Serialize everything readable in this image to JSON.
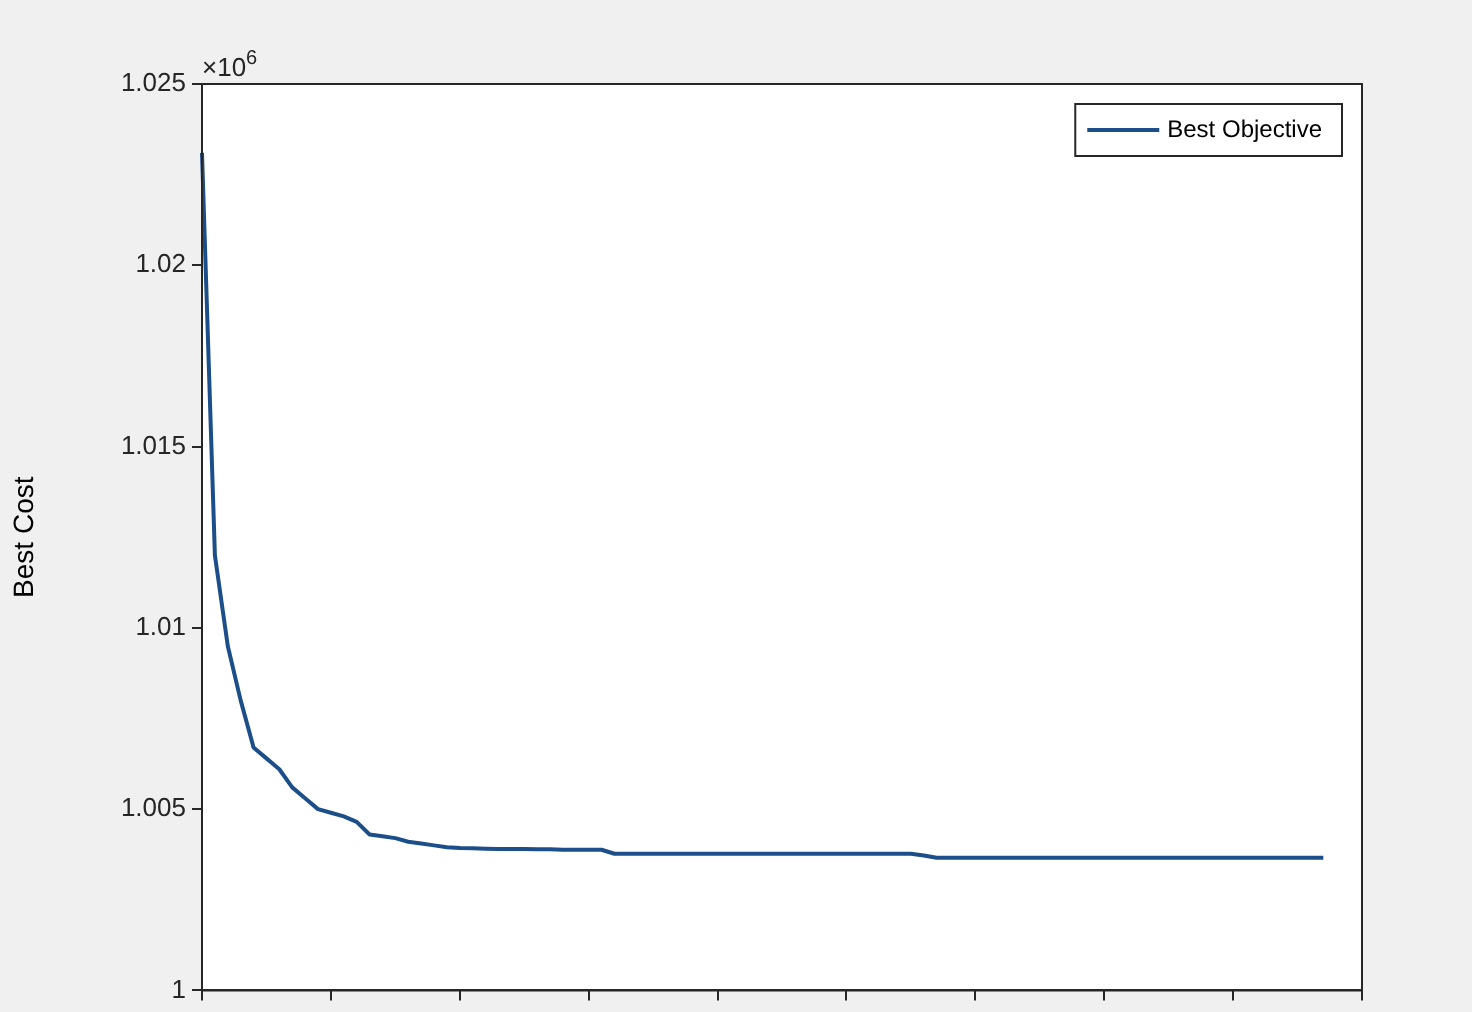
{
  "chart_data": {
    "type": "line",
    "ylabel": "Best Cost",
    "annotations": [
      "×10$^{6}$"
    ],
    "categories": [
      null,
      null,
      null,
      null,
      null,
      null,
      null,
      null,
      null,
      null,
      null,
      null,
      null,
      null,
      null,
      null,
      null,
      null,
      null,
      null,
      null,
      null,
      null,
      null,
      null,
      null,
      null,
      null,
      null,
      null,
      null,
      null,
      null,
      null,
      null,
      null,
      null,
      null,
      null,
      null,
      null,
      null,
      null,
      null,
      null,
      null,
      null,
      null,
      null,
      null,
      null,
      null,
      null,
      null,
      null,
      null,
      null,
      null,
      null,
      null,
      null,
      null,
      null,
      null,
      null,
      null,
      null,
      null,
      null,
      null,
      null,
      null,
      null,
      null,
      null,
      null,
      null,
      null,
      null,
      null,
      null,
      null,
      null,
      null,
      null,
      null,
      null,
      null,
      null,
      null,
      null
    ],
    "series": [
      {
        "name": "Best Objective",
        "color": "#1c4f8a",
        "values": [
          1.0231,
          1.012,
          1.0095,
          1.008,
          1.0067,
          1.0064,
          1.0061,
          1.0056,
          1.0053,
          1.005,
          1.0049,
          1.0048,
          1.00465,
          1.0043,
          1.00425,
          1.0042,
          1.0041,
          1.00405,
          1.004,
          1.00395,
          1.00393,
          1.00392,
          1.00391,
          1.0039,
          1.0039,
          1.0039,
          1.00389,
          1.00389,
          1.00388,
          1.00388,
          1.00388,
          1.00388,
          1.00377,
          1.00377,
          1.00377,
          1.00377,
          1.00377,
          1.00377,
          1.00377,
          1.00377,
          1.00377,
          1.00377,
          1.00377,
          1.00377,
          1.00377,
          1.00377,
          1.00377,
          1.00377,
          1.00377,
          1.00377,
          1.00377,
          1.00377,
          1.00377,
          1.00377,
          1.00377,
          1.00377,
          1.00372,
          1.00366,
          1.00366,
          1.00366,
          1.00366,
          1.00366,
          1.00366,
          1.00366,
          1.00366,
          1.00366,
          1.00366,
          1.00366,
          1.00366,
          1.00366,
          1.00366,
          1.00366,
          1.00366,
          1.00366,
          1.00366,
          1.00366,
          1.00366,
          1.00366,
          1.00366,
          1.00366,
          1.00366,
          1.00366,
          1.00366,
          1.00366,
          1.00366,
          1.00366,
          1.00366,
          1.00366,
          null,
          null,
          null
        ]
      }
    ],
    "ylim": [
      1,
      1.025
    ],
    "yticks": [
      1,
      1.005,
      1.01,
      1.015,
      1.02,
      1.025
    ],
    "grid": false,
    "legend": "top right",
    "marker": "none",
    "line_style": "solid"
  }
}
